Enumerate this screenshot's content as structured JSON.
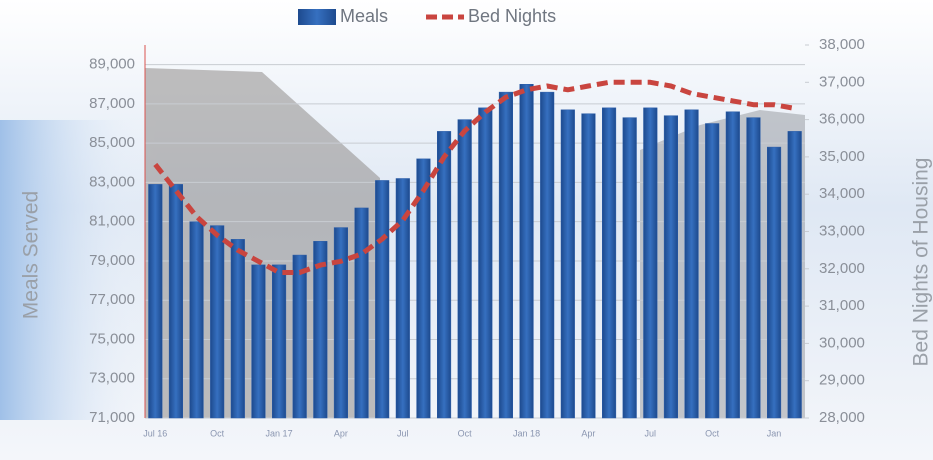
{
  "chart_data": {
    "type": "bar",
    "series": [
      {
        "name": "Meals",
        "color": "#2a5ca8",
        "type": "bar",
        "values": [
          82900,
          82900,
          81000,
          80800,
          80100,
          78800,
          78800,
          79300,
          80000,
          80700,
          81700,
          83100,
          83200,
          84200,
          85600,
          86200,
          86800,
          87600,
          88000,
          87600,
          86700,
          86500,
          86800,
          86300,
          86800,
          86400,
          86700,
          86000,
          86600,
          86300,
          84800,
          85600
        ]
      },
      {
        "name": "Bed Nights",
        "color": "#c9453f",
        "type": "line",
        "axis": "y2",
        "values": [
          34800,
          34100,
          33400,
          32900,
          32500,
          32200,
          31900,
          31900,
          32100,
          32200,
          32400,
          32800,
          33300,
          34100,
          35000,
          35700,
          36200,
          36600,
          36800,
          36900,
          36800,
          36900,
          37000,
          37000,
          37000,
          36900,
          36700,
          36600,
          36500,
          36400,
          36400,
          36300
        ]
      }
    ],
    "categories": [
      "Jul 16",
      null,
      null,
      "Oct",
      null,
      null,
      "Jan 17",
      null,
      null,
      "Apr",
      null,
      null,
      "Jul",
      null,
      null,
      "Oct",
      null,
      null,
      "Jan 18",
      null,
      null,
      "Apr",
      null,
      null,
      "Jul",
      null,
      null,
      "Oct",
      null,
      null,
      "Jan",
      null
    ],
    "y_label": "Meals Served",
    "y2_label": "Bed Nights of Housing",
    "ylim": [
      71000,
      90000
    ],
    "yticks": [
      {
        "value": 71000,
        "label": "71,000"
      },
      {
        "value": 73000,
        "label": "73,000"
      },
      {
        "value": 75000,
        "label": "75,000"
      },
      {
        "value": 77000,
        "label": "77,000"
      },
      {
        "value": 79000,
        "label": "79,000"
      },
      {
        "value": 81000,
        "label": "81,000"
      },
      {
        "value": 83000,
        "label": "83,000"
      },
      {
        "value": 85000,
        "label": "85,000"
      },
      {
        "value": 87000,
        "label": "87,000"
      },
      {
        "value": 89000,
        "label": "89,000"
      }
    ],
    "y2lim": [
      28000,
      38000
    ],
    "y2ticks": [
      {
        "value": 28000,
        "label": "28,000"
      },
      {
        "value": 29000,
        "label": "29,000"
      },
      {
        "value": 30000,
        "label": "30,000"
      },
      {
        "value": 31000,
        "label": "31,000"
      },
      {
        "value": 32000,
        "label": "32,000"
      },
      {
        "value": 33000,
        "label": "33,000"
      },
      {
        "value": 34000,
        "label": "34,000"
      },
      {
        "value": 35000,
        "label": "35,000"
      },
      {
        "value": 36000,
        "label": "36,000"
      },
      {
        "value": 37000,
        "label": "37,000"
      },
      {
        "value": 38000,
        "label": "38,000"
      }
    ],
    "grid": true,
    "legend": "top"
  }
}
